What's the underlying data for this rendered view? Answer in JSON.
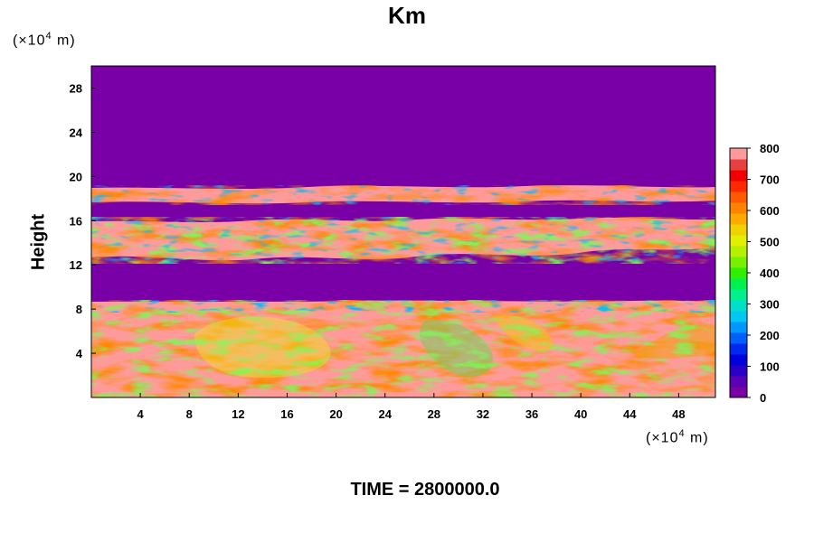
{
  "chart_data": {
    "type": "heatmap",
    "title": "Km",
    "ylabel": "Height",
    "y_unit": "(×10⁴ m)",
    "x_unit": "(×10⁴ m)",
    "x_unit_parts": {
      "pre": "(×10",
      "exp": "4",
      "post": " m)"
    },
    "y_unit_parts": {
      "pre": "(×10",
      "exp": "4",
      "post": " m)"
    },
    "xlim": [
      0,
      51
    ],
    "ylim": [
      0,
      30
    ],
    "x_ticks": [
      4,
      8,
      12,
      16,
      20,
      24,
      28,
      32,
      36,
      40,
      44,
      48
    ],
    "y_ticks": [
      4,
      8,
      12,
      16,
      20,
      24,
      28
    ],
    "colorbar": {
      "min": 0,
      "max": 800,
      "tick_values": [
        0,
        100,
        200,
        300,
        400,
        500,
        600,
        700,
        800
      ],
      "levels": [
        "#7a00a6",
        "#5a00b4",
        "#2a00c8",
        "#0000dc",
        "#0028f0",
        "#0060ff",
        "#0098ff",
        "#00c8f0",
        "#00e0c8",
        "#00f08c",
        "#00f050",
        "#30f000",
        "#78f000",
        "#b4f000",
        "#e0f000",
        "#f0d200",
        "#ffaa00",
        "#ff8200",
        "#ff5a00",
        "#ff2800",
        "#f00000",
        "#e84040",
        "#ff9a9a"
      ]
    },
    "regions": [
      {
        "name": "lower layer",
        "y_range": [
          0,
          8.7
        ],
        "value": "mostly 800, 300-700 in eddies"
      },
      {
        "name": "middle band",
        "y_range": [
          12.3,
          16.3
        ],
        "value": "mostly 800 with 0-700 filaments"
      },
      {
        "name": "upper band",
        "y_range": [
          17.4,
          19.0
        ],
        "value": "mostly 800 with 0-700 filaments"
      },
      {
        "name": "background",
        "value": 0
      }
    ]
  },
  "footer": {
    "time_text": "TIME = 2800000.0"
  }
}
